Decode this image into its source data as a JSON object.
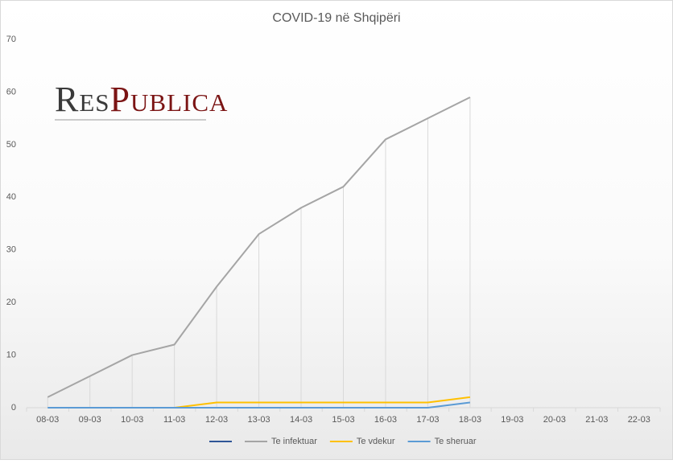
{
  "chart_data": {
    "type": "line",
    "title": "COVID-19 në Shqipëri",
    "watermark": [
      "Res",
      "Publica"
    ],
    "categories": [
      "08-03",
      "09-03",
      "10-03",
      "11-03",
      "12-03",
      "13-03",
      "14-03",
      "15-03",
      "16-03",
      "17-03",
      "18-03",
      "19-03",
      "20-03",
      "21-03",
      "22-03"
    ],
    "series": [
      {
        "color": "#2f5597",
        "values": [
          null,
          null,
          null,
          null,
          null,
          null,
          null,
          null,
          null,
          null,
          null,
          null,
          null,
          null,
          null
        ]
      },
      {
        "name": "Te infektuar",
        "color": "#a5a5a5",
        "values": [
          2,
          6,
          10,
          12,
          23,
          33,
          38,
          42,
          51,
          55,
          59,
          null,
          null,
          null,
          null
        ]
      },
      {
        "name": "Te vdekur",
        "color": "#ffc000",
        "values": [
          null,
          null,
          null,
          0,
          1,
          1,
          1,
          1,
          1,
          1,
          2,
          null,
          null,
          null,
          null
        ]
      },
      {
        "name": "Te sheruar",
        "color": "#5b9bd5",
        "values": [
          0,
          0,
          0,
          0,
          0,
          0,
          0,
          0,
          0,
          0,
          1,
          null,
          null,
          null,
          null
        ]
      }
    ],
    "drop_lines_series": 1,
    "ylim": [
      0,
      70
    ],
    "yticks": [
      0,
      10,
      20,
      30,
      40,
      50,
      60,
      70
    ],
    "grid": false
  }
}
